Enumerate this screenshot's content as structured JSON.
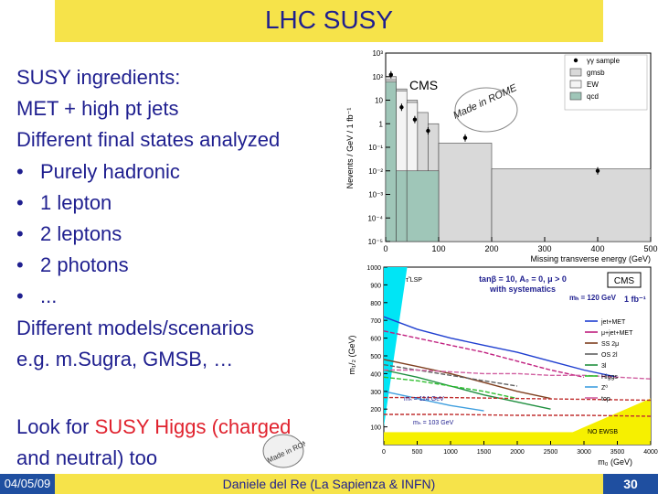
{
  "slide": {
    "title": "LHC SUSY",
    "bullets_intro": [
      "SUSY ingredients:",
      "MET + high pt jets",
      "Different final states analyzed"
    ],
    "bullets": [
      "Purely hadronic",
      "1 lepton",
      "2 leptons",
      "2 photons",
      "..."
    ],
    "bullet_glyph": "•",
    "after": [
      "Different models/scenarios",
      "e.g. m.Sugra, GMSB, …"
    ],
    "higgs_pre": "Look for ",
    "higgs_red": "SUSY Higgs (charged",
    "higgs_post": "and neutral) too",
    "stamp_text": "Made in ROME"
  },
  "footer": {
    "date": "04/05/09",
    "author": "Daniele del Re (La Sapienza & INFN)",
    "page": "30"
  },
  "colors": {
    "banner": "#f6e34a",
    "text": "#1f1f8f",
    "accent_red": "#e0222e",
    "footer_box": "#1f4fa0"
  },
  "chart_data": [
    {
      "type": "bar",
      "title": "CMS",
      "xlabel": "Missing transverse energy (GeV)",
      "ylabel": "Nevents / GeV / 1 fb⁻¹",
      "xlim": [
        0,
        500
      ],
      "ylog": true,
      "ylim_exp": [
        -5,
        3
      ],
      "x_ticks": [
        "0",
        "100",
        "200",
        "300",
        "400",
        "500"
      ],
      "y_ticks": [
        "10⁻⁵",
        "10⁻⁴",
        "10⁻³",
        "10⁻²",
        "10⁻¹",
        "1",
        "10",
        "10²",
        "10³"
      ],
      "legend": [
        "γγ sample",
        "gmsb",
        "EW",
        "qcd"
      ],
      "legend_position": "top-right",
      "series": [
        {
          "name": "gmsb",
          "bins": [
            [
              0,
              20,
              100
            ],
            [
              20,
              40,
              30
            ],
            [
              40,
              60,
              10
            ],
            [
              60,
              80,
              3
            ],
            [
              80,
              100,
              1
            ],
            [
              100,
              200,
              0.15
            ],
            [
              200,
              500,
              0.012
            ]
          ]
        },
        {
          "name": "EW",
          "bins": [
            [
              0,
              20,
              70
            ],
            [
              20,
              40,
              25
            ],
            [
              40,
              60,
              8
            ]
          ]
        },
        {
          "name": "qcd",
          "bins": [
            [
              0,
              20,
              60
            ],
            [
              20,
              40,
              0.01
            ],
            [
              40,
              100,
              0.01
            ]
          ]
        },
        {
          "name": "γγ sample",
          "points": [
            [
              10,
              120
            ],
            [
              30,
              5
            ],
            [
              55,
              1.5
            ],
            [
              80,
              0.5
            ],
            [
              150,
              0.25
            ],
            [
              400,
              0.01
            ]
          ]
        }
      ]
    },
    {
      "type": "line",
      "title": "CMS",
      "xlabel": "m₀ (GeV)",
      "ylabel": "m₁/₂ (GeV)",
      "xlim": [
        0,
        4000
      ],
      "ylim": [
        0,
        1000
      ],
      "x_ticks": [
        "0",
        "500",
        "1000",
        "1500",
        "2000",
        "2500",
        "3000",
        "3500",
        "4000"
      ],
      "y_ticks": [
        "100",
        "200",
        "300",
        "400",
        "500",
        "600",
        "700",
        "800",
        "900",
        "1000"
      ],
      "annotations": [
        "tanβ = 10, A₀ = 0, μ > 0",
        "with systematics",
        "mₕ = 120 GeV",
        "1 fb⁻¹",
        "mₕ = 114 GeV",
        "mₕ = 103 GeV",
        "NO EWSB",
        "τ̃ LSP"
      ],
      "legend": [
        "jet+MET",
        "μ+jet+MET",
        "SS 2μ",
        "OS 2l",
        "3l",
        "Higgs",
        "Z⁰",
        "top"
      ],
      "legend_position": "right",
      "series": [
        {
          "name": "jet+MET",
          "color": "#1f3fd0",
          "x": [
            0,
            500,
            1000,
            1500,
            2000,
            2500,
            3000,
            3500
          ],
          "y": [
            720,
            650,
            600,
            560,
            520,
            470,
            420,
            380
          ]
        },
        {
          "name": "μ+jet+MET",
          "color": "#c01f7f",
          "x": [
            0,
            500,
            1000,
            1500,
            2000,
            2500,
            3000
          ],
          "y": [
            640,
            600,
            560,
            520,
            470,
            420,
            380
          ]
        },
        {
          "name": "SS 2μ",
          "color": "#7f3f1f",
          "x": [
            0,
            500,
            1000,
            1500,
            2000,
            2500
          ],
          "y": [
            480,
            440,
            400,
            350,
            300,
            260
          ]
        },
        {
          "name": "OS 2l",
          "color": "#606060",
          "x": [
            0,
            500,
            1000,
            1500,
            2000
          ],
          "y": [
            450,
            420,
            390,
            360,
            330
          ]
        },
        {
          "name": "3l",
          "color": "#1f8f3f",
          "x": [
            0,
            500,
            1000,
            1500,
            2000,
            2500
          ],
          "y": [
            420,
            380,
            330,
            280,
            240,
            200
          ]
        },
        {
          "name": "Higgs",
          "color": "#2fbf2f",
          "x": [
            0,
            500,
            1000,
            1500,
            2000
          ],
          "y": [
            380,
            360,
            330,
            300,
            260
          ]
        },
        {
          "name": "Z⁰",
          "color": "#3f9fdf",
          "x": [
            0,
            500,
            1000,
            1500
          ],
          "y": [
            300,
            260,
            220,
            190
          ]
        },
        {
          "name": "top",
          "color": "#d05fa0",
          "x": [
            0,
            500,
            1000,
            1500,
            2000,
            2500,
            3000,
            3500,
            4000
          ],
          "y": [
            420,
            420,
            410,
            400,
            400,
            390,
            390,
            380,
            370
          ]
        },
        {
          "name": "mₕ = 114 GeV",
          "color": "#c03030",
          "x": [
            0,
            1000,
            2000,
            3000,
            4000
          ],
          "y": [
            265,
            265,
            260,
            255,
            250
          ]
        },
        {
          "name": "mₕ = 103 GeV",
          "color": "#c03030",
          "x": [
            0,
            1000,
            2000,
            3000,
            4000
          ],
          "y": [
            170,
            170,
            165,
            165,
            160
          ]
        }
      ]
    }
  ]
}
